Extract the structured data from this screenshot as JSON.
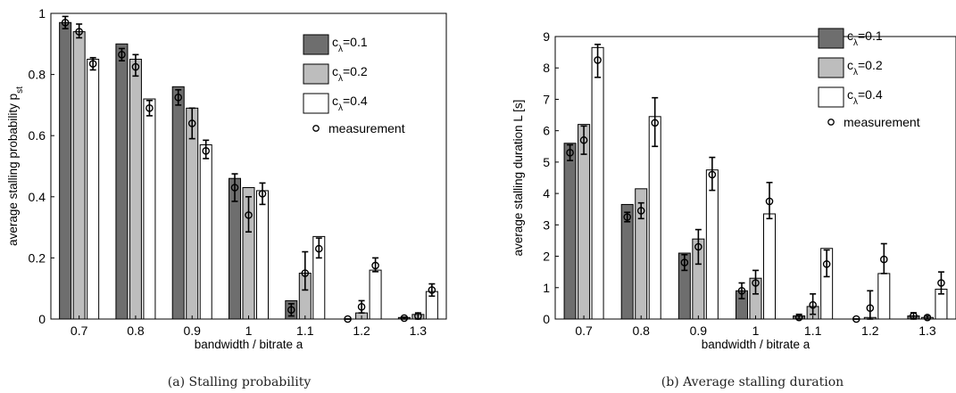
{
  "chart_data": [
    {
      "type": "bar",
      "caption": "(a) Stalling probability",
      "xlabel": "bandwidth / bitrate a",
      "ylabel": "average stalling probability p",
      "ylabel_sub": "st",
      "categories": [
        "0.7",
        "0.8",
        "0.9",
        "1",
        "1.1",
        "1.2",
        "1.3"
      ],
      "ylim": [
        0,
        1
      ],
      "yticks": [
        "0",
        "0.2",
        "0.4",
        "0.6",
        "0.8",
        "1"
      ],
      "series": [
        {
          "name": "c",
          "name_sub": "λ",
          "name_suffix": "=0.1",
          "values": [
            0.97,
            0.9,
            0.76,
            0.46,
            0.06,
            0.0,
            0.005
          ]
        },
        {
          "name": "c",
          "name_sub": "λ",
          "name_suffix": "=0.2",
          "values": [
            0.94,
            0.85,
            0.69,
            0.43,
            0.15,
            0.02,
            0.015
          ]
        },
        {
          "name": "c",
          "name_sub": "λ",
          "name_suffix": "=0.4",
          "values": [
            0.85,
            0.72,
            0.57,
            0.42,
            0.27,
            0.16,
            0.09
          ]
        }
      ],
      "measurement": {
        "name": "measurement",
        "mean": [
          [
            0.97,
            0.94,
            0.835
          ],
          [
            0.865,
            0.825,
            0.69
          ],
          [
            0.725,
            0.64,
            0.55
          ],
          [
            0.43,
            0.34,
            0.41
          ],
          [
            0.03,
            0.15,
            0.23
          ],
          [
            0.0,
            0.04,
            0.175
          ],
          [
            0.003,
            0.01,
            0.095
          ]
        ],
        "low": [
          [
            0.95,
            0.92,
            0.815
          ],
          [
            0.845,
            0.795,
            0.665
          ],
          [
            0.7,
            0.59,
            0.525
          ],
          [
            0.385,
            0.285,
            0.375
          ],
          [
            0.01,
            0.095,
            0.2
          ],
          [
            0.0,
            0.02,
            0.155
          ],
          [
            0.0,
            0.0,
            0.075
          ]
        ],
        "high": [
          [
            0.99,
            0.965,
            0.855
          ],
          [
            0.885,
            0.865,
            0.715
          ],
          [
            0.75,
            0.69,
            0.585
          ],
          [
            0.475,
            0.4,
            0.445
          ],
          [
            0.05,
            0.22,
            0.265
          ],
          [
            0.0,
            0.06,
            0.2
          ],
          [
            0.006,
            0.02,
            0.115
          ]
        ]
      },
      "legend_position": "top-right",
      "grid": false
    },
    {
      "type": "bar",
      "caption": "(b) Average stalling duration",
      "xlabel": "bandwidth / bitrate a",
      "ylabel": "average stalling duration L [s]",
      "ylabel_sub": "",
      "categories": [
        "0.7",
        "0.8",
        "0.9",
        "1",
        "1.1",
        "1.2",
        "1.3"
      ],
      "ylim": [
        0,
        9
      ],
      "yticks": [
        "0",
        "1",
        "2",
        "3",
        "4",
        "5",
        "6",
        "7",
        "8",
        "9"
      ],
      "series": [
        {
          "name": "c",
          "name_sub": "λ",
          "name_suffix": "=0.1",
          "values": [
            5.6,
            3.65,
            2.1,
            0.9,
            0.1,
            0.0,
            0.1
          ]
        },
        {
          "name": "c",
          "name_sub": "λ",
          "name_suffix": "=0.2",
          "values": [
            6.2,
            4.15,
            2.55,
            1.3,
            0.4,
            0.05,
            0.05
          ]
        },
        {
          "name": "c",
          "name_sub": "λ",
          "name_suffix": "=0.4",
          "values": [
            8.65,
            6.45,
            4.75,
            3.35,
            2.25,
            1.45,
            0.95
          ]
        }
      ],
      "measurement": {
        "name": "measurement",
        "mean": [
          [
            5.3,
            5.7,
            8.25
          ],
          [
            3.25,
            3.45,
            6.25
          ],
          [
            1.8,
            2.3,
            4.6
          ],
          [
            0.9,
            1.15,
            3.75
          ],
          [
            0.05,
            0.45,
            1.75
          ],
          [
            0.0,
            0.35,
            1.9
          ],
          [
            0.1,
            0.05,
            1.15
          ]
        ],
        "low": [
          [
            5.05,
            5.25,
            7.7
          ],
          [
            3.1,
            3.2,
            5.5
          ],
          [
            1.55,
            1.75,
            4.1
          ],
          [
            0.65,
            0.8,
            3.2
          ],
          [
            0.0,
            0.15,
            1.35
          ],
          [
            0.0,
            0.0,
            1.45
          ],
          [
            0.0,
            0.0,
            0.8
          ]
        ],
        "high": [
          [
            5.55,
            6.15,
            8.75
          ],
          [
            3.4,
            3.7,
            7.05
          ],
          [
            2.05,
            2.85,
            5.15
          ],
          [
            1.15,
            1.55,
            4.35
          ],
          [
            0.15,
            0.8,
            2.2
          ],
          [
            0.0,
            0.9,
            2.4
          ],
          [
            0.2,
            0.1,
            1.5
          ]
        ]
      },
      "legend_position": "top-right",
      "grid": false
    }
  ],
  "colors": {
    "series": [
      "#6e6e6e",
      "#bdbdbd",
      "#ffffff"
    ],
    "axis": "#000000"
  }
}
